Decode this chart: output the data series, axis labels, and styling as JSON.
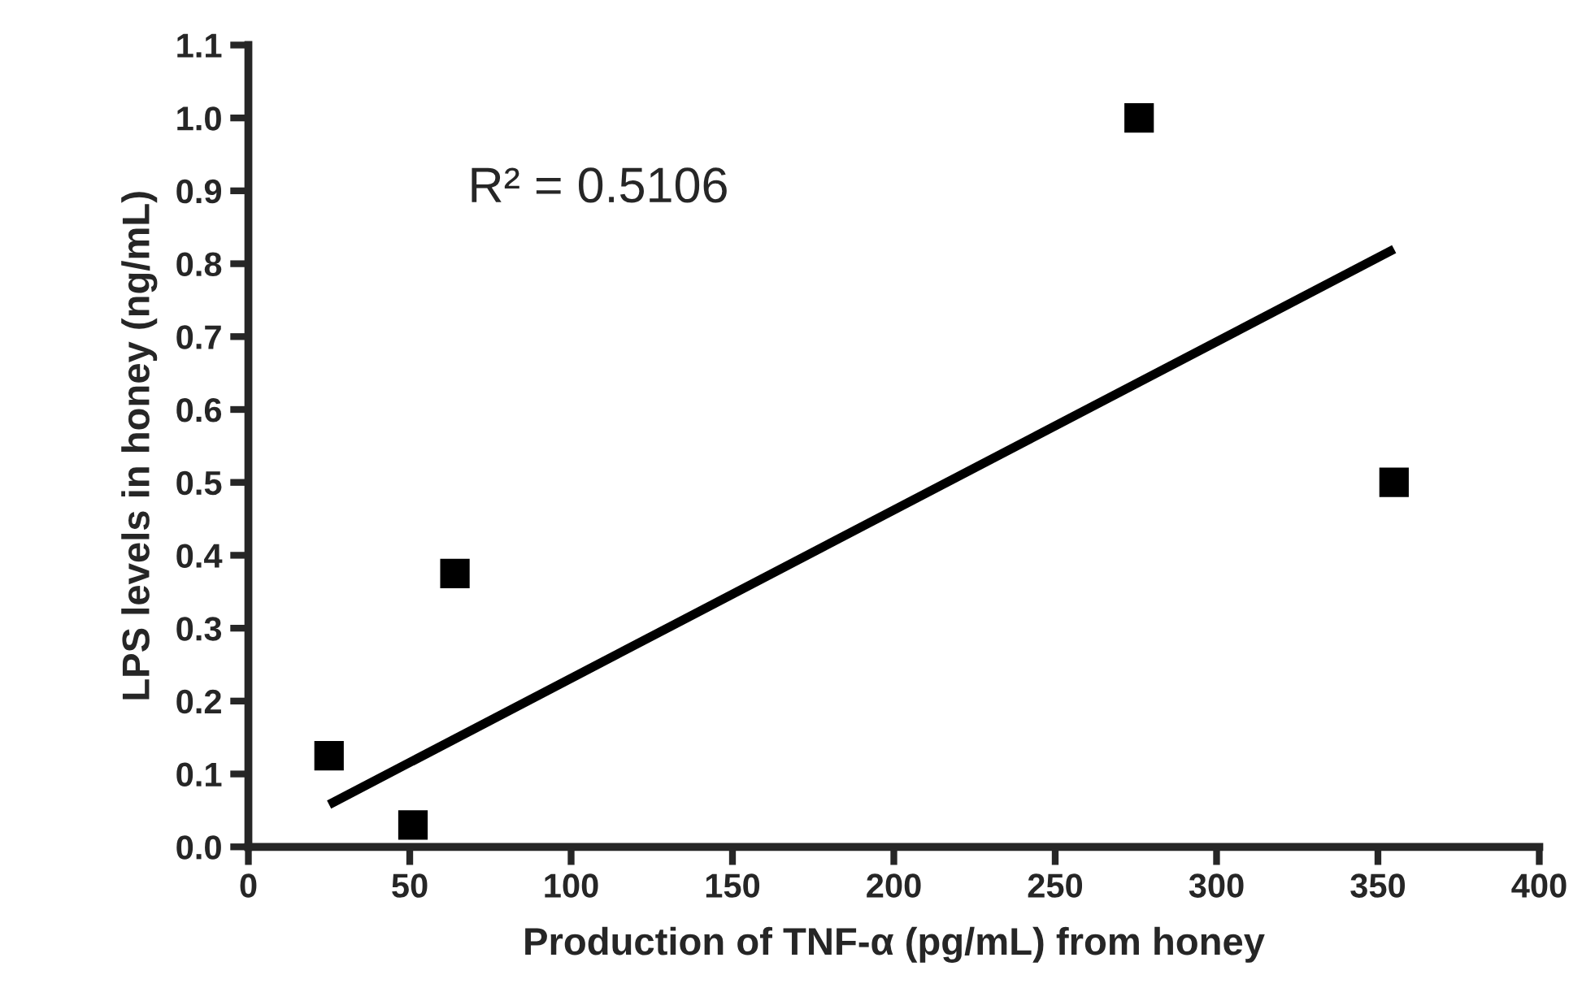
{
  "chart_data": {
    "type": "scatter",
    "xlabel": "Production of TNF-α (pg/mL) from honey",
    "ylabel": "LPS levels in honey (ng/mL)",
    "annotations": [
      "R² = 0.5106"
    ],
    "x": [
      25,
      51,
      64,
      276,
      355
    ],
    "series": [
      {
        "color": "#000000",
        "values": [
          0.125,
          0.03,
          0.375,
          1.0,
          0.5
        ],
        "marker": "square"
      },
      {
        "type": "line",
        "color": "#000000",
        "x": [
          25,
          355
        ],
        "values": [
          0.058,
          0.82
        ],
        "marker": "none",
        "line_style": "solid"
      }
    ],
    "xlim": [
      0,
      400
    ],
    "xticks": [
      0,
      50,
      100,
      150,
      200,
      250,
      300,
      350,
      400
    ],
    "ylim": [
      0,
      1.1
    ],
    "yticks": [
      {
        "value": 0,
        "label": "0.0"
      },
      {
        "value": 0.1,
        "label": "0.1"
      },
      {
        "value": 0.2,
        "label": "0.2"
      },
      {
        "value": 0.3,
        "label": "0.3"
      },
      {
        "value": 0.4,
        "label": "0.4"
      },
      {
        "value": 0.5,
        "label": "0.5"
      },
      {
        "value": 0.6,
        "label": "0.6"
      },
      {
        "value": 0.7,
        "label": "0.7"
      },
      {
        "value": 0.8,
        "label": "0.8"
      },
      {
        "value": 0.9,
        "label": "0.9"
      },
      {
        "value": 1.0,
        "label": "1.0"
      },
      {
        "value": 1.1,
        "label": "1.1"
      }
    ],
    "grid": false,
    "legend": false
  }
}
